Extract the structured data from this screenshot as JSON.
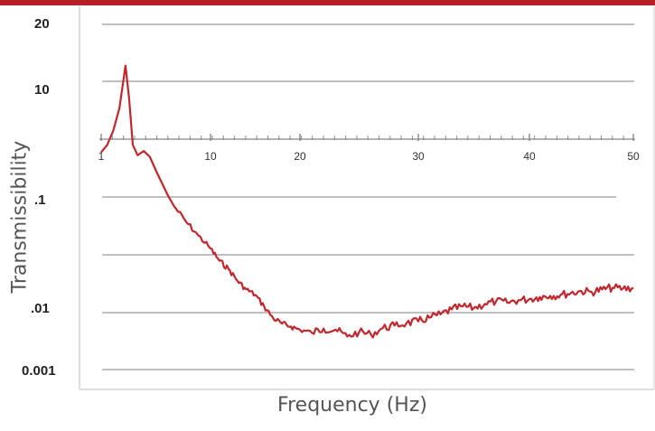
{
  "chart_data": {
    "type": "line",
    "title": "",
    "xlabel": "Frequency (Hz)",
    "ylabel": "Transmissibility",
    "y_scale": "log",
    "ylim": [
      0.001,
      20
    ],
    "y_tick_labels": [
      "20",
      "10",
      ".1",
      ".01",
      "0.001"
    ],
    "x_tick_labels": [
      "1",
      "10",
      "20",
      "30",
      "40",
      "50"
    ],
    "xlim": [
      1,
      50
    ],
    "grid": "horizontal",
    "legend": "none",
    "series_color": "#c1272d",
    "grid_color": "#9a9a9a",
    "topbar_color": "#b32025",
    "series": [
      {
        "x": [
          1,
          1.5,
          2,
          2.5,
          3,
          3.3,
          3.6,
          4,
          4.5,
          5,
          5.5,
          6,
          6.5,
          7,
          8,
          9,
          10,
          11,
          12,
          13,
          14,
          15,
          16,
          17,
          18,
          19,
          20,
          21,
          22,
          23,
          24,
          25,
          26,
          27,
          28,
          29,
          30,
          31,
          32,
          33,
          34,
          35,
          36,
          37,
          38,
          39,
          40,
          41,
          42,
          43,
          44,
          45,
          46,
          47,
          48,
          49,
          50
        ],
        "y": [
          1.2,
          1.5,
          2.3,
          4.5,
          16,
          6,
          1.5,
          1.1,
          1.25,
          1.05,
          0.7,
          0.48,
          0.33,
          0.24,
          0.15,
          0.1,
          0.068,
          0.047,
          0.037,
          0.026,
          0.02,
          0.017,
          0.012,
          0.0085,
          0.0072,
          0.0066,
          0.006,
          0.0055,
          0.0062,
          0.006,
          0.0049,
          0.0056,
          0.0052,
          0.0063,
          0.0068,
          0.0073,
          0.0077,
          0.0086,
          0.0095,
          0.011,
          0.012,
          0.0115,
          0.013,
          0.014,
          0.0135,
          0.0145,
          0.015,
          0.016,
          0.0165,
          0.017,
          0.018,
          0.019,
          0.0185,
          0.02,
          0.021,
          0.0205,
          0.021
        ]
      }
    ]
  }
}
